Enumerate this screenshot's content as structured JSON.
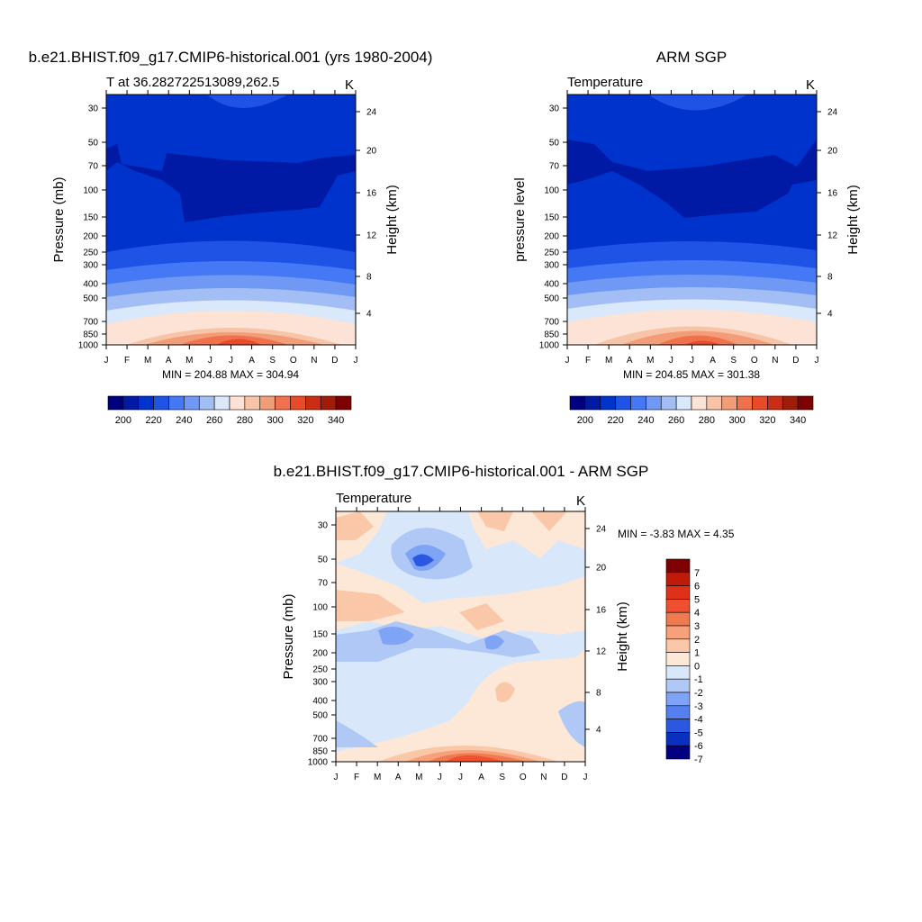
{
  "chart_data": [
    {
      "type": "heatmap",
      "title": "b.e21.BHIST.f09_g17.CMIP6-historical.001 (yrs 1980-2004)",
      "subtitle_left": "T at 36.282722513089,262.5",
      "units": "K",
      "ylabel": "Pressure (mb)",
      "ylabel_right": "Height (km)",
      "x_ticks": [
        "J",
        "F",
        "M",
        "A",
        "M",
        "J",
        "J",
        "A",
        "S",
        "O",
        "N",
        "D",
        "J"
      ],
      "y_ticks": [
        "30",
        "50",
        "70",
        "100",
        "150",
        "200",
        "250",
        "300",
        "400",
        "500",
        "700",
        "850",
        "1000"
      ],
      "height_ticks": [
        "24",
        "20",
        "16",
        "12",
        "8",
        "4"
      ],
      "stats": "MIN = 204.88 MAX = 304.94",
      "colorbar_labels": [
        "200",
        "220",
        "240",
        "260",
        "280",
        "300",
        "320",
        "340"
      ],
      "colorbar_colors": [
        "#00007f",
        "#001aa6",
        "#0033cc",
        "#1f53e6",
        "#4578f5",
        "#7099f5",
        "#a3bdf5",
        "#d9e8fa",
        "#fde3d5",
        "#f8c4a8",
        "#f39d78",
        "#f0714b",
        "#e84a2a",
        "#c92e15",
        "#a01c08",
        "#7f0000"
      ]
    },
    {
      "type": "heatmap",
      "title": "ARM SGP",
      "subtitle_left": "Temperature",
      "units": "K",
      "ylabel": "pressure level",
      "ylabel_right": "Height (km)",
      "x_ticks": [
        "J",
        "F",
        "M",
        "A",
        "M",
        "J",
        "J",
        "A",
        "S",
        "O",
        "N",
        "D",
        "J"
      ],
      "y_ticks": [
        "30",
        "50",
        "70",
        "100",
        "150",
        "200",
        "250",
        "300",
        "400",
        "500",
        "700",
        "850",
        "1000"
      ],
      "height_ticks": [
        "24",
        "20",
        "16",
        "12",
        "8",
        "4"
      ],
      "stats": "MIN = 204.85 MAX = 301.38",
      "colorbar_labels": [
        "200",
        "220",
        "240",
        "260",
        "280",
        "300",
        "320",
        "340"
      ],
      "colorbar_colors": [
        "#00007f",
        "#001aa6",
        "#0033cc",
        "#1f53e6",
        "#4578f5",
        "#7099f5",
        "#a3bdf5",
        "#d9e8fa",
        "#fde3d5",
        "#f8c4a8",
        "#f39d78",
        "#f0714b",
        "#e84a2a",
        "#c92e15",
        "#a01c08",
        "#7f0000"
      ]
    },
    {
      "type": "heatmap",
      "title": "b.e21.BHIST.f09_g17.CMIP6-historical.001 - ARM SGP",
      "subtitle_left": "Temperature",
      "units": "K",
      "ylabel": "Pressure (mb)",
      "ylabel_right": "Height (km)",
      "x_ticks": [
        "J",
        "F",
        "M",
        "A",
        "M",
        "J",
        "J",
        "A",
        "S",
        "O",
        "N",
        "D",
        "J"
      ],
      "y_ticks": [
        "30",
        "50",
        "70",
        "100",
        "150",
        "200",
        "250",
        "300",
        "400",
        "500",
        "700",
        "850",
        "1000"
      ],
      "height_ticks": [
        "24",
        "20",
        "16",
        "12",
        "8",
        "4"
      ],
      "stats": "MIN =  -3.83 MAX =   4.35",
      "colorbar_labels": [
        "7",
        "6",
        "5",
        "4",
        "3",
        "2",
        "1",
        "0",
        "-1",
        "-2",
        "-3",
        "-4",
        "-5",
        "-6",
        "-7"
      ],
      "colorbar_colors": [
        "#7f0000",
        "#c01a0a",
        "#e0301a",
        "#f05030",
        "#f07a50",
        "#f8a07a",
        "#fac8a8",
        "#fde8d8",
        "#d8e8fa",
        "#b0c8f5",
        "#80a4f5",
        "#5580f0",
        "#2a58e0",
        "#0a30c0",
        "#000080"
      ]
    }
  ]
}
